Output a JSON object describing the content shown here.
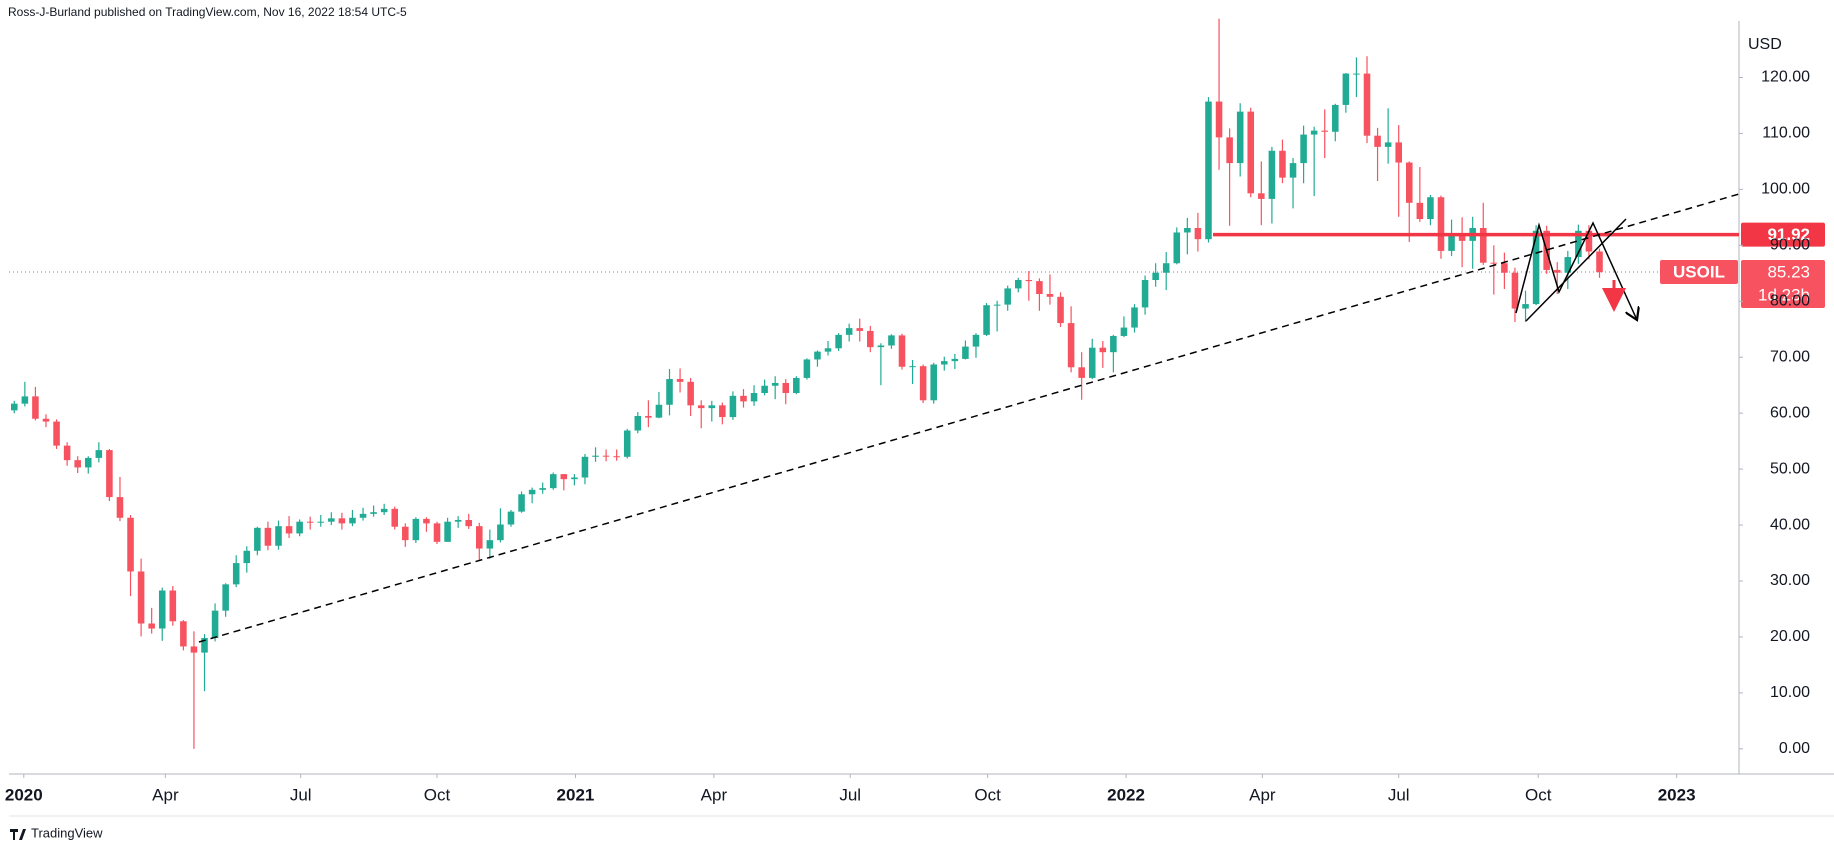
{
  "header": {
    "attribution": "Ross-J-Burland published on TradingView.com, Nov 16, 2022 18:54 UTC-5"
  },
  "footer": {
    "brand": "TradingView"
  },
  "chart_data": {
    "type": "candlestick",
    "symbol": "USOIL",
    "currency": "USD",
    "countdown": "1d 23h",
    "up_color": "#22ab94",
    "down_color": "#f7525f",
    "grid": false,
    "ylim": [
      -4.5,
      130.1
    ],
    "yticks": [
      {
        "value": 0,
        "label": "0.00"
      },
      {
        "value": 10,
        "label": "10.00"
      },
      {
        "value": 20,
        "label": "20.00"
      },
      {
        "value": 30,
        "label": "30.00"
      },
      {
        "value": 40,
        "label": "40.00"
      },
      {
        "value": 50,
        "label": "50.00"
      },
      {
        "value": 60,
        "label": "60.00"
      },
      {
        "value": 70,
        "label": "70.00"
      },
      {
        "value": 80,
        "label": "80.00"
      },
      {
        "value": 90,
        "label": "90.00"
      },
      {
        "value": 100,
        "label": "100.00"
      },
      {
        "value": 110,
        "label": "110.00"
      },
      {
        "value": 120,
        "label": "120.00"
      }
    ],
    "xlim": [
      -0.5,
      163.2
    ],
    "xticks": [
      {
        "value": 0.9,
        "label": "2020"
      },
      {
        "value": 14.3,
        "label": "Apr"
      },
      {
        "value": 27.1,
        "label": "Jul"
      },
      {
        "value": 40.0,
        "label": "Oct"
      },
      {
        "value": 53.1,
        "label": "2021"
      },
      {
        "value": 66.2,
        "label": "Apr"
      },
      {
        "value": 79.1,
        "label": "Jul"
      },
      {
        "value": 92.1,
        "label": "Oct"
      },
      {
        "value": 105.2,
        "label": "2022"
      },
      {
        "value": 118.1,
        "label": "Apr"
      },
      {
        "value": 131.0,
        "label": "Jul"
      },
      {
        "value": 144.2,
        "label": "Oct"
      },
      {
        "value": 157.3,
        "label": "2023"
      }
    ],
    "level": {
      "value": 91.92,
      "color": "#f23645"
    },
    "last_price": 85.23,
    "open": [
      60.5,
      61.7,
      63.0,
      59.0,
      58.5,
      54.2,
      51.6,
      50.3,
      52.0,
      53.4,
      45.0,
      41.3,
      31.7,
      22.4,
      21.5,
      28.3,
      22.8,
      18.3,
      17.2,
      19.8,
      24.7,
      29.4,
      33.2,
      35.4,
      39.5,
      36.3,
      39.8,
      38.5,
      40.6,
      40.5,
      40.6,
      41.2,
      40.3,
      41.3,
      42.0,
      42.3,
      42.9,
      39.7,
      37.3,
      41.1,
      40.3,
      37.0,
      40.6,
      40.9,
      39.8,
      35.8,
      37.3,
      40.1,
      42.4,
      45.5,
      46.3,
      46.6,
      49.1,
      48.2,
      48.5,
      52.2,
      52.4,
      52.3,
      52.2,
      56.9,
      59.5,
      59.2,
      61.5,
      66.1,
      65.6,
      61.4,
      60.9,
      61.4,
      59.3,
      63.1,
      62.1,
      63.6,
      64.9,
      65.4,
      63.6,
      66.3,
      69.6,
      71.0,
      71.6,
      74.0,
      75.2,
      74.7,
      71.8,
      72.1,
      73.9,
      68.3,
      68.4,
      62.3,
      68.7,
      69.3,
      69.7,
      71.9,
      74.0,
      79.3,
      79.4,
      82.3,
      83.8,
      83.6,
      81.3,
      80.8,
      76.1,
      68.2,
      66.3,
      71.7,
      70.9,
      73.8,
      75.3,
      78.9,
      83.8,
      85.1,
      86.8,
      92.3,
      93.1,
      91.1,
      115.7,
      109.3,
      104.7,
      113.9,
      99.3,
      98.3,
      106.9,
      102.1,
      104.7,
      109.8,
      110.5,
      110.3,
      115.1,
      120.7,
      120.7,
      109.6,
      107.6,
      108.4,
      104.8,
      97.6,
      94.7,
      98.6,
      89.0,
      92.1,
      90.8,
      93.1,
      86.9,
      86.8,
      85.1,
      78.7,
      79.5,
      92.6,
      85.6,
      85.1,
      87.9,
      92.6,
      88.9
    ],
    "high": [
      62.2,
      65.6,
      64.7,
      59.8,
      58.9,
      54.8,
      52.3,
      52.3,
      54.8,
      53.6,
      48.6,
      41.8,
      34.0,
      25.2,
      28.8,
      29.1,
      23.0,
      21.0,
      20.5,
      26.0,
      29.6,
      34.6,
      36.2,
      39.7,
      40.6,
      40.8,
      41.6,
      41.0,
      41.5,
      41.8,
      42.3,
      42.2,
      42.7,
      43.1,
      43.5,
      43.8,
      43.3,
      40.3,
      41.4,
      41.4,
      40.6,
      41.3,
      41.6,
      42.0,
      40.4,
      39.2,
      43.0,
      42.7,
      46.0,
      46.7,
      47.6,
      49.4,
      49.1,
      49.1,
      52.7,
      53.9,
      53.5,
      53.5,
      57.2,
      60.2,
      62.3,
      63.8,
      67.9,
      68.0,
      66.3,
      62.3,
      62.2,
      61.9,
      63.9,
      64.3,
      65.0,
      66.0,
      66.6,
      66.1,
      66.6,
      69.8,
      71.2,
      72.9,
      74.3,
      76.0,
      76.9,
      75.6,
      72.5,
      74.1,
      74.2,
      69.5,
      68.7,
      69.0,
      70.1,
      70.6,
      73.0,
      74.3,
      79.7,
      80.1,
      82.8,
      84.2,
      85.4,
      84.1,
      84.8,
      81.6,
      79.1,
      70.9,
      73.3,
      72.9,
      74.0,
      77.3,
      79.5,
      84.6,
      86.8,
      88.8,
      93.2,
      94.9,
      95.8,
      116.5,
      130.5,
      110.9,
      115.4,
      114.6,
      105.0,
      107.6,
      108.9,
      105.6,
      111.4,
      111.2,
      114.3,
      115.3,
      120.8,
      123.6,
      123.8,
      111.0,
      114.5,
      111.5,
      105.0,
      104.0,
      99.0,
      98.9,
      94.6,
      95.0,
      95.1,
      97.6,
      90.0,
      88.7,
      86.0,
      81.9,
      93.6,
      93.5,
      87.0,
      89.0,
      93.7,
      93.6,
      89.4
    ],
    "low": [
      60.0,
      61.2,
      58.7,
      57.5,
      53.6,
      50.6,
      49.3,
      49.2,
      51.2,
      44.3,
      40.7,
      27.3,
      20.1,
      20.6,
      19.3,
      22.0,
      17.6,
      0.0,
      10.3,
      19.2,
      23.6,
      28.9,
      31.5,
      34.6,
      35.5,
      35.6,
      37.7,
      38.0,
      39.2,
      39.7,
      40.0,
      39.2,
      39.8,
      40.8,
      41.5,
      41.8,
      39.2,
      36.1,
      36.8,
      38.8,
      36.6,
      37.0,
      39.5,
      39.3,
      33.8,
      34.0,
      36.9,
      39.7,
      42.2,
      43.9,
      45.6,
      46.3,
      46.2,
      47.1,
      47.3,
      51.3,
      51.4,
      51.5,
      51.9,
      56.4,
      57.5,
      59.1,
      59.6,
      63.7,
      59.5,
      57.3,
      58.5,
      58.0,
      58.8,
      61.0,
      61.3,
      63.2,
      62.5,
      61.6,
      63.4,
      66.0,
      68.3,
      70.3,
      71.1,
      72.8,
      72.8,
      70.9,
      65.0,
      71.5,
      67.8,
      65.2,
      61.8,
      61.7,
      67.6,
      67.9,
      69.6,
      69.9,
      73.8,
      74.6,
      78.3,
      81.6,
      80.1,
      78.3,
      79.4,
      75.4,
      67.3,
      62.4,
      66.1,
      68.1,
      67.3,
      73.6,
      74.4,
      77.6,
      82.6,
      82.0,
      86.6,
      88.4,
      88.9,
      90.5,
      103.5,
      93.5,
      102.3,
      98.6,
      93.6,
      93.9,
      101.1,
      96.6,
      101.1,
      98.8,
      105.6,
      108.6,
      113.7,
      116.5,
      108.3,
      101.5,
      104.6,
      95.1,
      90.6,
      94.2,
      93.6,
      87.6,
      88.1,
      86.1,
      85.8,
      86.5,
      81.2,
      82.2,
      76.3,
      76.3,
      79.3,
      84.9,
      81.3,
      82.2,
      86.7,
      87.5,
      84.2
    ],
    "close": [
      61.7,
      63.0,
      59.0,
      58.5,
      54.2,
      51.6,
      50.3,
      52.0,
      53.4,
      45.0,
      41.3,
      31.7,
      22.4,
      21.5,
      28.3,
      22.8,
      18.3,
      17.2,
      19.8,
      24.7,
      29.4,
      33.2,
      35.4,
      39.5,
      36.3,
      39.8,
      38.5,
      40.6,
      40.5,
      40.6,
      41.2,
      40.3,
      41.3,
      42.0,
      42.3,
      42.9,
      39.7,
      37.3,
      41.1,
      40.3,
      37.0,
      40.6,
      40.9,
      39.8,
      35.8,
      37.3,
      40.1,
      42.4,
      45.5,
      46.3,
      46.6,
      49.1,
      48.2,
      48.5,
      52.2,
      52.4,
      52.3,
      52.2,
      56.9,
      59.5,
      59.2,
      61.5,
      66.1,
      65.6,
      61.4,
      60.9,
      61.4,
      59.3,
      63.1,
      62.1,
      63.6,
      64.9,
      65.4,
      63.6,
      66.3,
      69.6,
      71.0,
      71.6,
      74.0,
      75.2,
      74.7,
      71.8,
      72.1,
      73.9,
      68.3,
      68.4,
      62.3,
      68.7,
      69.3,
      69.7,
      71.9,
      74.0,
      79.3,
      79.4,
      82.3,
      83.8,
      83.6,
      81.3,
      80.8,
      76.1,
      68.2,
      66.3,
      71.7,
      70.9,
      73.8,
      75.3,
      78.9,
      83.8,
      85.1,
      86.8,
      92.3,
      93.1,
      91.1,
      115.7,
      109.3,
      104.7,
      113.9,
      99.3,
      98.3,
      106.9,
      102.1,
      104.7,
      109.8,
      110.5,
      110.3,
      115.1,
      120.7,
      120.7,
      109.6,
      107.6,
      108.4,
      104.8,
      97.6,
      94.7,
      98.6,
      89.0,
      92.1,
      90.8,
      93.1,
      86.9,
      86.8,
      85.1,
      78.7,
      79.5,
      92.6,
      85.6,
      85.1,
      87.9,
      92.6,
      88.9,
      85.2
    ]
  }
}
